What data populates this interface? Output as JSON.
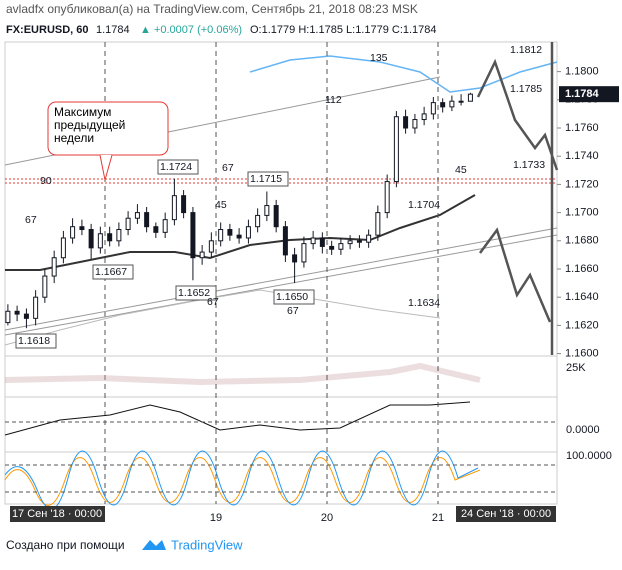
{
  "header": {
    "line1": "avladfx опубликовал(а) на TradingView.com, Сентябрь 21, 2018 08:23 MSK",
    "symbol": "FX:EURUSD, 60",
    "last": "1.1784",
    "change": "▲ +0.0007 (+0.06%)",
    "ohlc": "O:1.1779 H:1.1785 L:1.1779 C:1.1784"
  },
  "footer": {
    "made_with": "Создано при помощи",
    "brand": "TradingView"
  },
  "chart_data": {
    "type": "candlestick",
    "x": [
      0.125,
      0.208,
      0.292,
      0.375,
      0.458,
      0.542,
      0.625,
      0.708,
      0.792,
      0.875,
      0.958,
      1.042,
      1.125,
      1.208,
      1.292,
      1.375,
      1.458,
      1.542,
      1.625,
      1.708,
      1.792,
      1.875,
      1.958,
      2.042,
      2.125,
      2.208,
      2.292,
      2.375,
      2.458,
      2.542,
      2.625,
      2.708,
      2.792,
      2.875,
      2.958,
      3.042,
      3.125,
      3.208,
      3.292,
      3.375,
      3.458,
      3.542,
      3.625,
      3.708,
      3.792,
      3.875,
      3.958,
      4.042,
      4.125,
      4.208,
      4.292
    ],
    "open": [
      1.1622,
      1.163,
      1.1628,
      1.1625,
      1.164,
      1.1655,
      1.1668,
      1.1682,
      1.169,
      1.1688,
      1.1675,
      1.1685,
      1.168,
      1.1688,
      1.1696,
      1.17,
      1.169,
      1.1686,
      1.1695,
      1.1712,
      1.17,
      1.1668,
      1.1672,
      1.168,
      1.1688,
      1.1684,
      1.1682,
      1.169,
      1.1698,
      1.1705,
      1.169,
      1.167,
      1.1665,
      1.1678,
      1.1682,
      1.1676,
      1.1674,
      1.1678,
      1.168,
      1.1679,
      1.1684,
      1.17,
      1.1722,
      1.1768,
      1.176,
      1.1766,
      1.177,
      1.1778,
      1.1775,
      1.1779,
      1.1779
    ],
    "high": [
      1.1635,
      1.1634,
      1.1632,
      1.1645,
      1.166,
      1.1673,
      1.1687,
      1.1696,
      1.1695,
      1.1692,
      1.169,
      1.169,
      1.1693,
      1.1701,
      1.1706,
      1.1704,
      1.1693,
      1.17,
      1.1724,
      1.1716,
      1.1704,
      1.1677,
      1.1686,
      1.1693,
      1.1692,
      1.1689,
      1.1695,
      1.1703,
      1.1715,
      1.1709,
      1.1694,
      1.1675,
      1.1683,
      1.1687,
      1.1686,
      1.168,
      1.1682,
      1.1684,
      1.1684,
      1.1688,
      1.1705,
      1.1727,
      1.1772,
      1.1773,
      1.177,
      1.1775,
      1.1782,
      1.1781,
      1.1783,
      1.1784,
      1.1785
    ],
    "low": [
      1.162,
      1.1623,
      1.1618,
      1.162,
      1.1636,
      1.165,
      1.1664,
      1.1678,
      1.1684,
      1.1667,
      1.1671,
      1.1676,
      1.1676,
      1.1684,
      1.1692,
      1.1686,
      1.1682,
      1.1682,
      1.1691,
      1.1696,
      1.1652,
      1.1663,
      1.1668,
      1.1676,
      1.168,
      1.1678,
      1.1678,
      1.1686,
      1.1694,
      1.1686,
      1.1665,
      1.165,
      1.1661,
      1.1674,
      1.1671,
      1.167,
      1.167,
      1.1674,
      1.1675,
      1.1675,
      1.168,
      1.1696,
      1.1718,
      1.1756,
      1.1756,
      1.1762,
      1.1766,
      1.1771,
      1.1772,
      1.1776,
      1.1779
    ],
    "close": [
      1.163,
      1.1628,
      1.1625,
      1.164,
      1.1655,
      1.1668,
      1.1682,
      1.169,
      1.1688,
      1.1675,
      1.1685,
      1.168,
      1.1688,
      1.1696,
      1.17,
      1.169,
      1.1686,
      1.1695,
      1.1712,
      1.17,
      1.1668,
      1.1672,
      1.168,
      1.1688,
      1.1684,
      1.1682,
      1.169,
      1.1698,
      1.1705,
      1.169,
      1.167,
      1.1665,
      1.1678,
      1.1682,
      1.1676,
      1.1674,
      1.1678,
      1.168,
      1.1679,
      1.1684,
      1.17,
      1.1722,
      1.1768,
      1.176,
      1.1766,
      1.177,
      1.1778,
      1.1775,
      1.1779,
      1.1779,
      1.1784
    ],
    "color": "#131722",
    "xlim": [
      0.099,
      5.072
    ],
    "xticks": [
      {
        "value": 2,
        "label": "19"
      },
      {
        "value": 3,
        "label": "20"
      },
      {
        "value": 4,
        "label": "21"
      }
    ],
    "ylim": [
      1.1599,
      1.1821
    ],
    "yticks": [
      {
        "value": 1.16,
        "label": "1.1600"
      },
      {
        "value": 1.162,
        "label": "1.1620"
      },
      {
        "value": 1.164,
        "label": "1.1640"
      },
      {
        "value": 1.166,
        "label": "1.1660"
      },
      {
        "value": 1.168,
        "label": "1.1680"
      },
      {
        "value": 1.17,
        "label": "1.1700"
      },
      {
        "value": 1.172,
        "label": "1.1720"
      },
      {
        "value": 1.174,
        "label": "1.1740"
      },
      {
        "value": 1.176,
        "label": "1.1760"
      },
      {
        "value": 1.178,
        "label": "1.1780"
      },
      {
        "value": 1.18,
        "label": "1.1800"
      }
    ],
    "time_labels": [
      "17 Сен '18 · 00:00",
      "24 Сен '18 · 00:00"
    ],
    "subpanel_labels": [
      "25K",
      "0.0000",
      "100.0000"
    ],
    "callout": "Максимум предыдущей недели",
    "annotations": [
      "1.1724",
      "1.1715",
      "1.1667",
      "1.1652",
      "1.1650",
      "1.1618",
      "1.1704",
      "1.1634",
      "1.1812",
      "1.1785",
      "1.1733",
      "135",
      "112",
      "90",
      "67",
      "67",
      "45",
      "45",
      "67",
      "67"
    ]
  }
}
